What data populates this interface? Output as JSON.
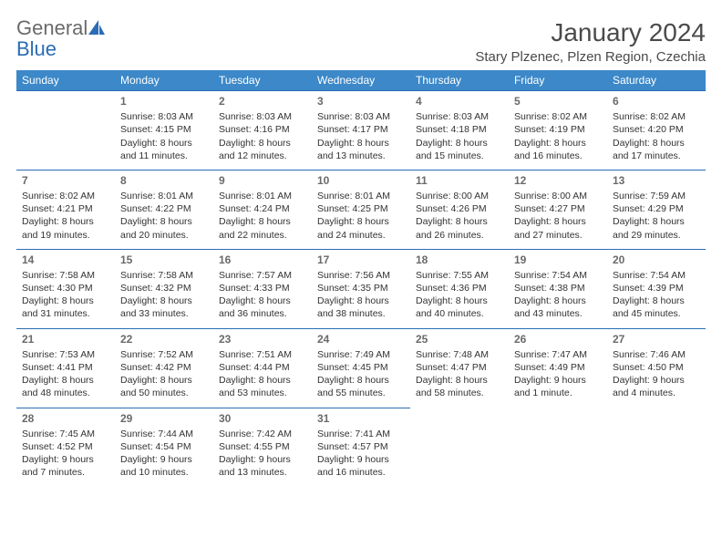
{
  "brand": {
    "part1": "General",
    "part2": "Blue"
  },
  "title": "January 2024",
  "location": "Stary Plzenec, Plzen Region, Czechia",
  "colors": {
    "header_bg": "#3c88c8",
    "header_text": "#ffffff",
    "rule": "#2a6db5",
    "text": "#333333",
    "muted": "#6a6a6a",
    "brand_gray": "#6a6a6a",
    "brand_blue": "#2a6db5",
    "background": "#ffffff"
  },
  "typography": {
    "title_fontsize": 28,
    "location_fontsize": 15,
    "dayhead_fontsize": 12,
    "daynum_fontsize": 12,
    "cell_fontsize": 10.5
  },
  "day_names": [
    "Sunday",
    "Monday",
    "Tuesday",
    "Wednesday",
    "Thursday",
    "Friday",
    "Saturday"
  ],
  "weeks": [
    [
      null,
      {
        "n": "1",
        "sunrise": "Sunrise: 8:03 AM",
        "sunset": "Sunset: 4:15 PM",
        "d1": "Daylight: 8 hours",
        "d2": "and 11 minutes."
      },
      {
        "n": "2",
        "sunrise": "Sunrise: 8:03 AM",
        "sunset": "Sunset: 4:16 PM",
        "d1": "Daylight: 8 hours",
        "d2": "and 12 minutes."
      },
      {
        "n": "3",
        "sunrise": "Sunrise: 8:03 AM",
        "sunset": "Sunset: 4:17 PM",
        "d1": "Daylight: 8 hours",
        "d2": "and 13 minutes."
      },
      {
        "n": "4",
        "sunrise": "Sunrise: 8:03 AM",
        "sunset": "Sunset: 4:18 PM",
        "d1": "Daylight: 8 hours",
        "d2": "and 15 minutes."
      },
      {
        "n": "5",
        "sunrise": "Sunrise: 8:02 AM",
        "sunset": "Sunset: 4:19 PM",
        "d1": "Daylight: 8 hours",
        "d2": "and 16 minutes."
      },
      {
        "n": "6",
        "sunrise": "Sunrise: 8:02 AM",
        "sunset": "Sunset: 4:20 PM",
        "d1": "Daylight: 8 hours",
        "d2": "and 17 minutes."
      }
    ],
    [
      {
        "n": "7",
        "sunrise": "Sunrise: 8:02 AM",
        "sunset": "Sunset: 4:21 PM",
        "d1": "Daylight: 8 hours",
        "d2": "and 19 minutes."
      },
      {
        "n": "8",
        "sunrise": "Sunrise: 8:01 AM",
        "sunset": "Sunset: 4:22 PM",
        "d1": "Daylight: 8 hours",
        "d2": "and 20 minutes."
      },
      {
        "n": "9",
        "sunrise": "Sunrise: 8:01 AM",
        "sunset": "Sunset: 4:24 PM",
        "d1": "Daylight: 8 hours",
        "d2": "and 22 minutes."
      },
      {
        "n": "10",
        "sunrise": "Sunrise: 8:01 AM",
        "sunset": "Sunset: 4:25 PM",
        "d1": "Daylight: 8 hours",
        "d2": "and 24 minutes."
      },
      {
        "n": "11",
        "sunrise": "Sunrise: 8:00 AM",
        "sunset": "Sunset: 4:26 PM",
        "d1": "Daylight: 8 hours",
        "d2": "and 26 minutes."
      },
      {
        "n": "12",
        "sunrise": "Sunrise: 8:00 AM",
        "sunset": "Sunset: 4:27 PM",
        "d1": "Daylight: 8 hours",
        "d2": "and 27 minutes."
      },
      {
        "n": "13",
        "sunrise": "Sunrise: 7:59 AM",
        "sunset": "Sunset: 4:29 PM",
        "d1": "Daylight: 8 hours",
        "d2": "and 29 minutes."
      }
    ],
    [
      {
        "n": "14",
        "sunrise": "Sunrise: 7:58 AM",
        "sunset": "Sunset: 4:30 PM",
        "d1": "Daylight: 8 hours",
        "d2": "and 31 minutes."
      },
      {
        "n": "15",
        "sunrise": "Sunrise: 7:58 AM",
        "sunset": "Sunset: 4:32 PM",
        "d1": "Daylight: 8 hours",
        "d2": "and 33 minutes."
      },
      {
        "n": "16",
        "sunrise": "Sunrise: 7:57 AM",
        "sunset": "Sunset: 4:33 PM",
        "d1": "Daylight: 8 hours",
        "d2": "and 36 minutes."
      },
      {
        "n": "17",
        "sunrise": "Sunrise: 7:56 AM",
        "sunset": "Sunset: 4:35 PM",
        "d1": "Daylight: 8 hours",
        "d2": "and 38 minutes."
      },
      {
        "n": "18",
        "sunrise": "Sunrise: 7:55 AM",
        "sunset": "Sunset: 4:36 PM",
        "d1": "Daylight: 8 hours",
        "d2": "and 40 minutes."
      },
      {
        "n": "19",
        "sunrise": "Sunrise: 7:54 AM",
        "sunset": "Sunset: 4:38 PM",
        "d1": "Daylight: 8 hours",
        "d2": "and 43 minutes."
      },
      {
        "n": "20",
        "sunrise": "Sunrise: 7:54 AM",
        "sunset": "Sunset: 4:39 PM",
        "d1": "Daylight: 8 hours",
        "d2": "and 45 minutes."
      }
    ],
    [
      {
        "n": "21",
        "sunrise": "Sunrise: 7:53 AM",
        "sunset": "Sunset: 4:41 PM",
        "d1": "Daylight: 8 hours",
        "d2": "and 48 minutes."
      },
      {
        "n": "22",
        "sunrise": "Sunrise: 7:52 AM",
        "sunset": "Sunset: 4:42 PM",
        "d1": "Daylight: 8 hours",
        "d2": "and 50 minutes."
      },
      {
        "n": "23",
        "sunrise": "Sunrise: 7:51 AM",
        "sunset": "Sunset: 4:44 PM",
        "d1": "Daylight: 8 hours",
        "d2": "and 53 minutes."
      },
      {
        "n": "24",
        "sunrise": "Sunrise: 7:49 AM",
        "sunset": "Sunset: 4:45 PM",
        "d1": "Daylight: 8 hours",
        "d2": "and 55 minutes."
      },
      {
        "n": "25",
        "sunrise": "Sunrise: 7:48 AM",
        "sunset": "Sunset: 4:47 PM",
        "d1": "Daylight: 8 hours",
        "d2": "and 58 minutes."
      },
      {
        "n": "26",
        "sunrise": "Sunrise: 7:47 AM",
        "sunset": "Sunset: 4:49 PM",
        "d1": "Daylight: 9 hours",
        "d2": "and 1 minute."
      },
      {
        "n": "27",
        "sunrise": "Sunrise: 7:46 AM",
        "sunset": "Sunset: 4:50 PM",
        "d1": "Daylight: 9 hours",
        "d2": "and 4 minutes."
      }
    ],
    [
      {
        "n": "28",
        "sunrise": "Sunrise: 7:45 AM",
        "sunset": "Sunset: 4:52 PM",
        "d1": "Daylight: 9 hours",
        "d2": "and 7 minutes."
      },
      {
        "n": "29",
        "sunrise": "Sunrise: 7:44 AM",
        "sunset": "Sunset: 4:54 PM",
        "d1": "Daylight: 9 hours",
        "d2": "and 10 minutes."
      },
      {
        "n": "30",
        "sunrise": "Sunrise: 7:42 AM",
        "sunset": "Sunset: 4:55 PM",
        "d1": "Daylight: 9 hours",
        "d2": "and 13 minutes."
      },
      {
        "n": "31",
        "sunrise": "Sunrise: 7:41 AM",
        "sunset": "Sunset: 4:57 PM",
        "d1": "Daylight: 9 hours",
        "d2": "and 16 minutes."
      },
      null,
      null,
      null
    ]
  ]
}
